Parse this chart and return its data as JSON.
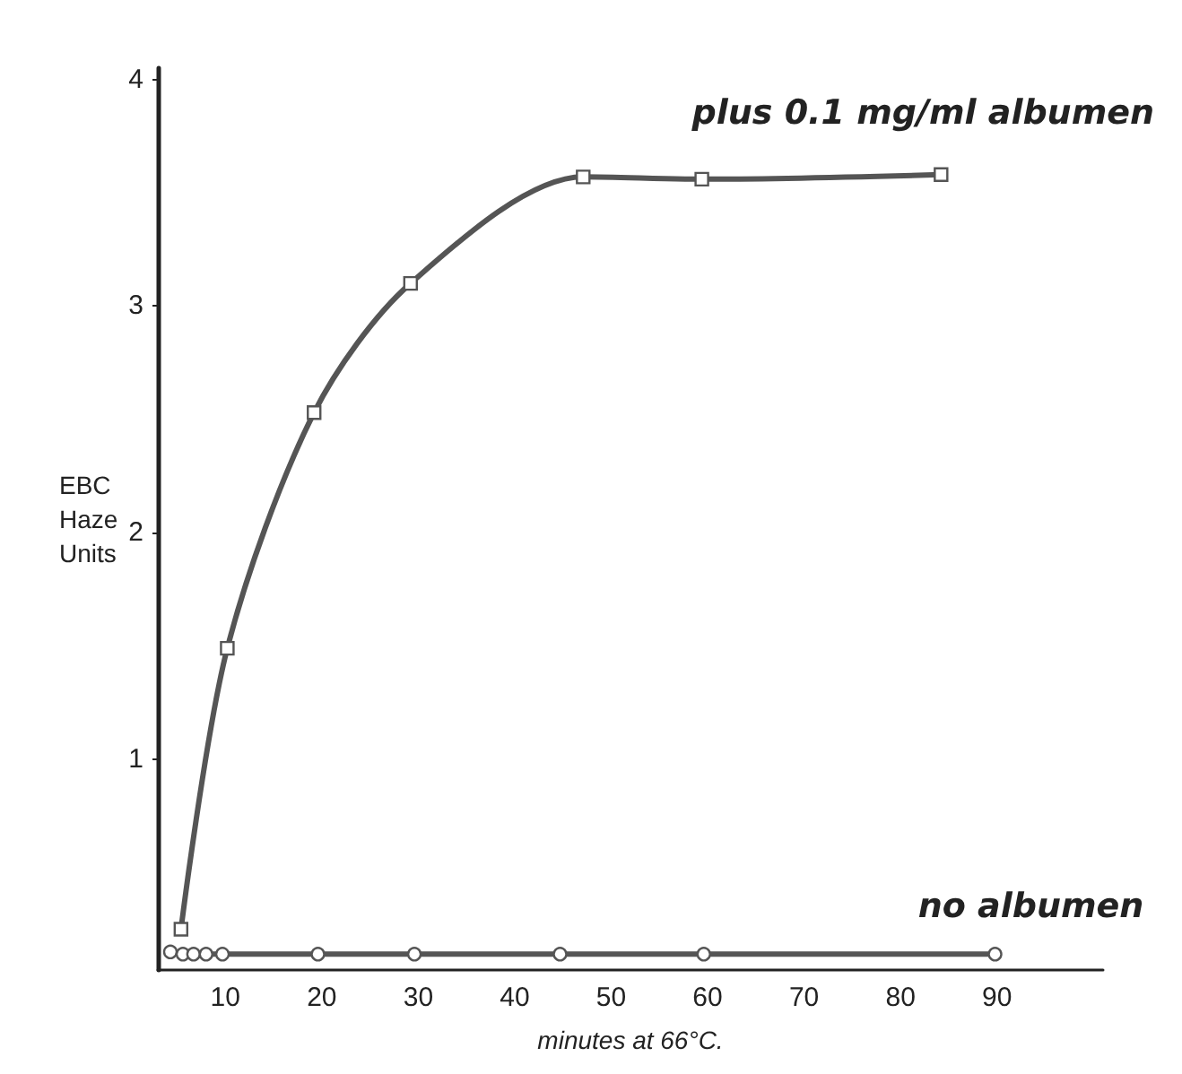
{
  "chart_data": {
    "type": "line",
    "xlabel": "minutes at 66°C.",
    "ylabel": "EBC Haze Units",
    "xlim": [
      3,
      101
    ],
    "xticks": [
      10,
      20,
      30,
      40,
      50,
      60,
      70,
      80,
      90
    ],
    "ylim": [
      0.07,
      4.05
    ],
    "yticks": [
      1,
      2,
      3,
      4
    ],
    "grid": false,
    "legend": false,
    "line_style": "solid",
    "series": [
      {
        "name": "plus 0.1 mg/ml albumen",
        "color": "#555555",
        "marker": "square",
        "x": [
          5.4,
          10.2,
          19.2,
          29.2,
          47.1,
          59.4,
          84.2
        ],
        "values": [
          0.25,
          1.49,
          2.53,
          3.1,
          3.57,
          3.56,
          3.58
        ]
      },
      {
        "name": "no albumen",
        "color": "#555555",
        "marker": "circle",
        "x": [
          4.3,
          5.6,
          6.7,
          8,
          9.7,
          19.6,
          29.6,
          44.7,
          59.6,
          89.8
        ],
        "values": [
          0.15,
          0.14,
          0.14,
          0.14,
          0.14,
          0.14,
          0.14,
          0.14,
          0.14,
          0.14
        ]
      }
    ]
  }
}
